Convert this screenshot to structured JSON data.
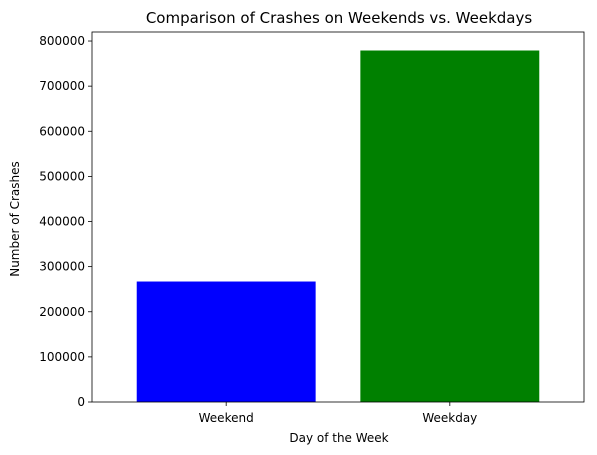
{
  "chart_data": {
    "type": "bar",
    "title": "Comparison of Crashes on Weekends vs. Weekdays",
    "xlabel": "Day of the Week",
    "ylabel": "Number of Crashes",
    "categories": [
      "Weekend",
      "Weekday"
    ],
    "values": [
      267000,
      779000
    ],
    "colors": [
      "#0000ff",
      "#008000"
    ],
    "ylim": [
      0,
      820000
    ],
    "yticks": [
      0,
      100000,
      200000,
      300000,
      400000,
      500000,
      600000,
      700000,
      800000
    ],
    "grid": false,
    "legend": "none"
  }
}
